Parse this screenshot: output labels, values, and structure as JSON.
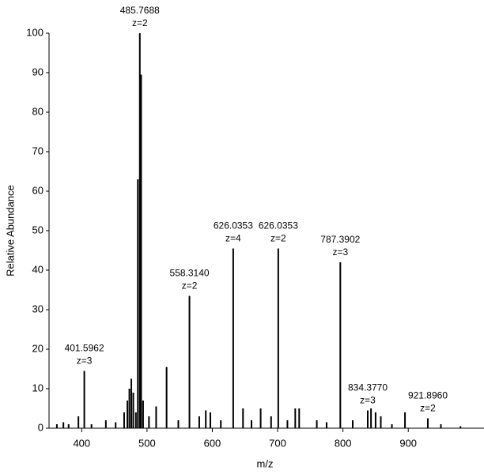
{
  "chart_data": {
    "type": "stick",
    "x_label": "m/z",
    "y_label": "Relative Abundance",
    "xlim": [
      350,
      1016
    ],
    "ylim": [
      0,
      100
    ],
    "xticks": [
      400,
      500,
      600,
      700,
      800,
      900
    ],
    "yticks": [
      0,
      10,
      20,
      30,
      40,
      50,
      60,
      70,
      80,
      90,
      100
    ],
    "color": "#000000",
    "x": [
      362,
      372,
      380,
      395,
      404,
      415,
      437,
      452,
      465,
      470,
      473,
      476,
      479,
      483,
      486,
      489,
      491,
      494,
      503,
      514,
      530,
      548,
      565,
      580,
      590,
      597,
      613,
      632,
      647,
      660,
      674,
      690,
      701,
      715,
      727,
      733,
      760,
      775,
      796,
      815,
      838,
      843,
      850,
      858,
      875,
      895,
      930,
      950,
      980
    ],
    "values": [
      1,
      1.5,
      1,
      3,
      14.5,
      1,
      2,
      1.5,
      4,
      7,
      10,
      12.5,
      9,
      4,
      63,
      100,
      89.5,
      7,
      3,
      5.5,
      15.5,
      2,
      33.5,
      3,
      4.5,
      4,
      2,
      45.5,
      5,
      2,
      5,
      3,
      45.5,
      2,
      5,
      5,
      2,
      1.5,
      42,
      2,
      4.5,
      5,
      4,
      3,
      1,
      4,
      2.5,
      1,
      0.5
    ],
    "value_labels": [
      null,
      null,
      null,
      null,
      [
        "401.5962",
        "z=3"
      ],
      null,
      null,
      null,
      null,
      null,
      null,
      null,
      null,
      null,
      null,
      [
        "485.7688",
        "z=2"
      ],
      null,
      null,
      null,
      null,
      null,
      null,
      [
        "558.3140",
        "z=2"
      ],
      null,
      null,
      null,
      null,
      [
        "626.0353",
        "z=4"
      ],
      null,
      null,
      null,
      null,
      [
        "626.0353",
        "z=2"
      ],
      null,
      null,
      null,
      null,
      null,
      [
        "787.3902",
        "z=3"
      ],
      null,
      [
        "834.3770",
        "z=3"
      ],
      null,
      null,
      null,
      null,
      null,
      [
        "921.8960",
        "z=2"
      ],
      null,
      null
    ]
  }
}
